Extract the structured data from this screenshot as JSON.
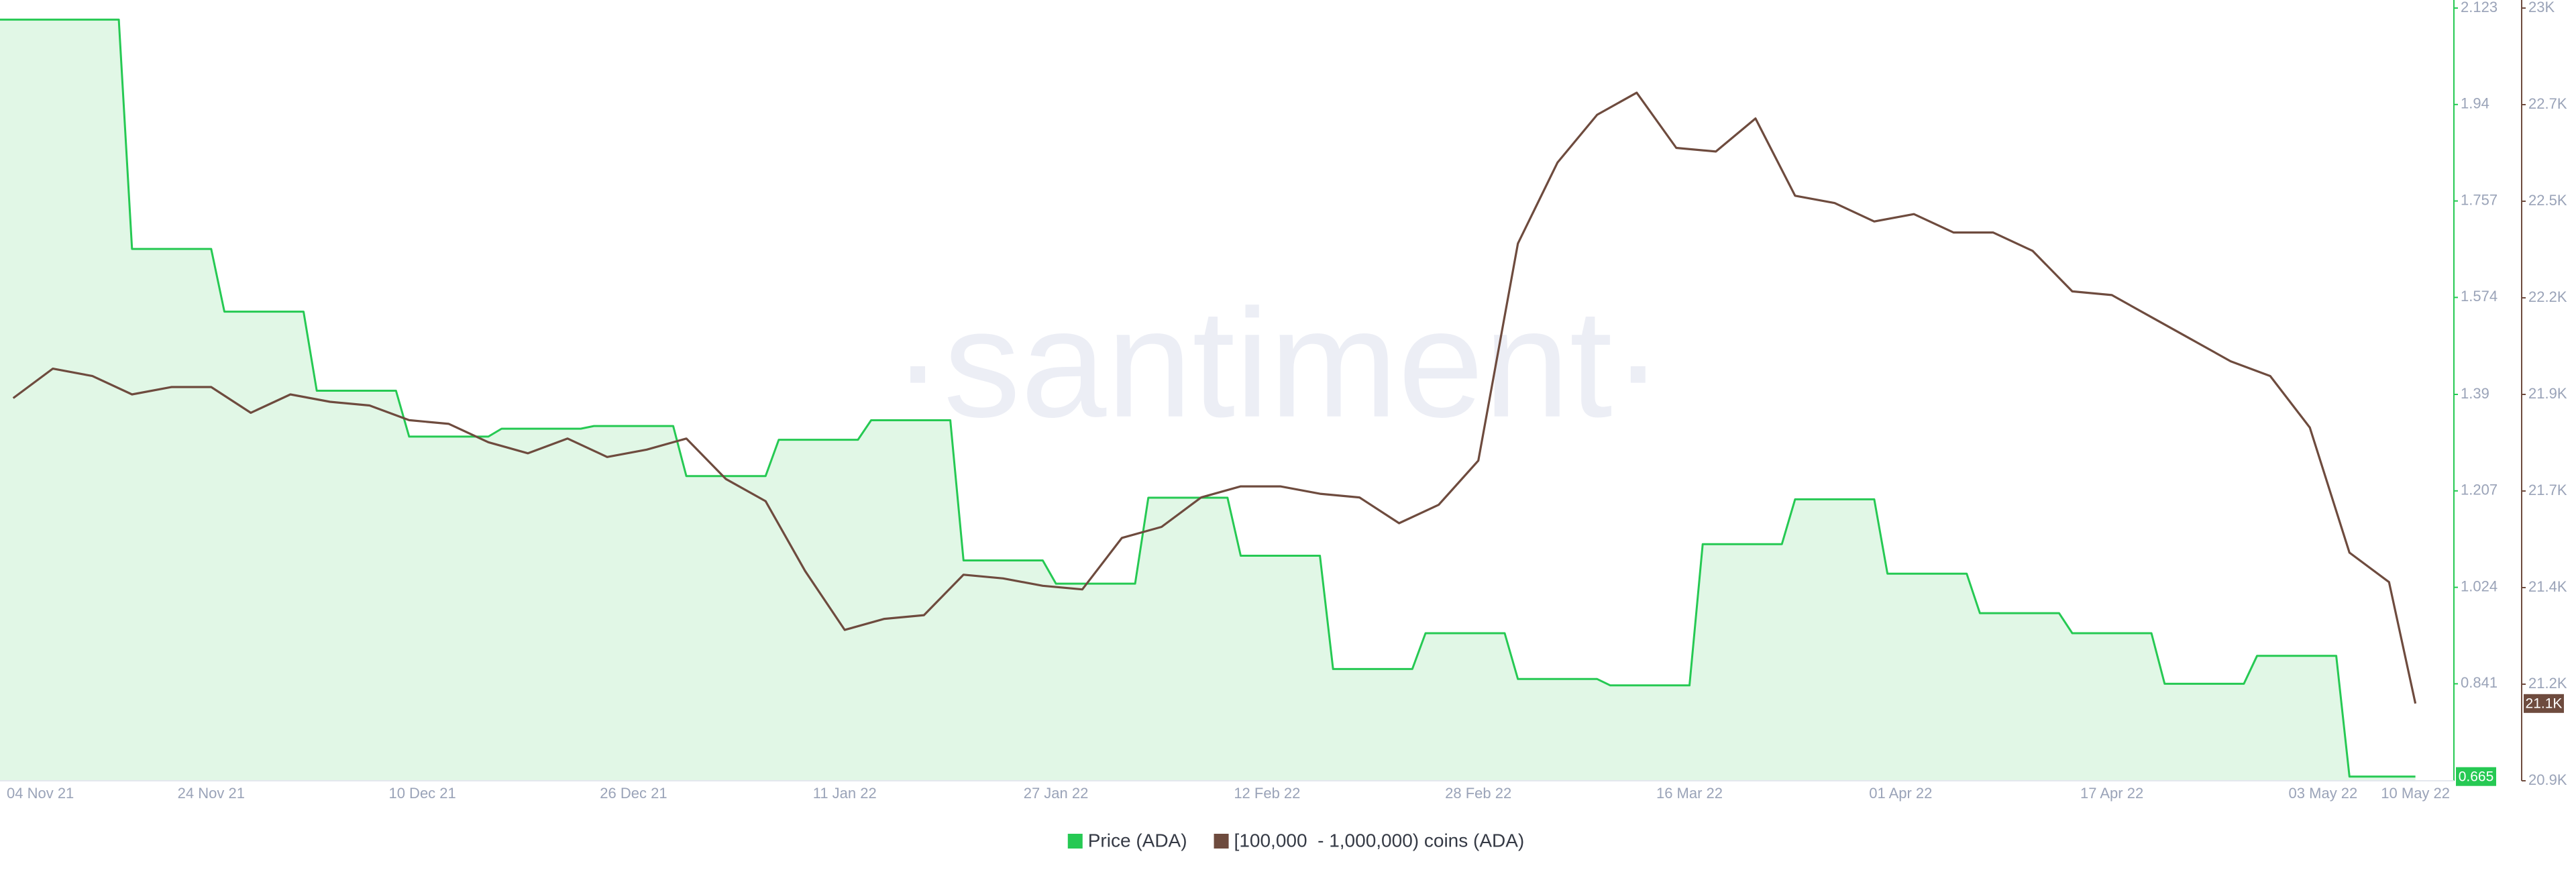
{
  "chart_data": {
    "type": "line",
    "watermark": "·santiment·",
    "xlim": [
      "2021-11-08",
      "2022-05-12"
    ],
    "xticks": [
      {
        "value": "2021-11-04",
        "label": "04 Nov 21"
      },
      {
        "value": "2021-11-24",
        "label": "24 Nov 21"
      },
      {
        "value": "2021-12-10",
        "label": "10 Dec 21"
      },
      {
        "value": "2021-12-26",
        "label": "26 Dec 21"
      },
      {
        "value": "2022-01-11",
        "label": "11 Jan 22"
      },
      {
        "value": "2022-01-27",
        "label": "27 Jan 22"
      },
      {
        "value": "2022-02-12",
        "label": "12 Feb 22"
      },
      {
        "value": "2022-02-28",
        "label": "28 Feb 22"
      },
      {
        "value": "2022-03-16",
        "label": "16 Mar 22"
      },
      {
        "value": "2022-04-01",
        "label": "01 Apr 22"
      },
      {
        "value": "2022-04-17",
        "label": "17 Apr 22"
      },
      {
        "value": "2022-05-03",
        "label": "03 May 22"
      },
      {
        "value": "2022-05-10",
        "label": "10 May 22"
      }
    ],
    "ylim": [
      0.657,
      2.123
    ],
    "yticks": [
      2.123,
      1.94,
      1.757,
      1.574,
      1.39,
      1.207,
      1.024,
      0.841
    ],
    "y2lim": [
      20900,
      23000
    ],
    "y2ticks": [
      {
        "value": 23000,
        "label": "23K"
      },
      {
        "value": 22737.5,
        "label": "22.7K"
      },
      {
        "value": 22475,
        "label": "22.5K"
      },
      {
        "value": 22212.5,
        "label": "22.2K"
      },
      {
        "value": 21950,
        "label": "21.9K"
      },
      {
        "value": 21687.5,
        "label": "21.7K"
      },
      {
        "value": 21425,
        "label": "21.4K"
      },
      {
        "value": 21162.5,
        "label": "21.2K"
      },
      {
        "value": 20900,
        "label": "20.9K"
      }
    ],
    "legend": "bottom",
    "series": [
      {
        "name": "Price (ADA)",
        "color": "#26c953",
        "fill": "#e1f7e6",
        "area": true,
        "axis": "y",
        "x": [
          "2021-11-08",
          "2021-11-17",
          "2021-11-18",
          "2021-11-24",
          "2021-11-25",
          "2021-12-01",
          "2021-12-02",
          "2021-12-08",
          "2021-12-09",
          "2021-12-15",
          "2021-12-16",
          "2021-12-22",
          "2021-12-23",
          "2021-12-29",
          "2021-12-30",
          "2022-01-05",
          "2022-01-06",
          "2022-01-12",
          "2022-01-13",
          "2022-01-19",
          "2022-01-20",
          "2022-01-26",
          "2022-01-27",
          "2022-02-02",
          "2022-02-03",
          "2022-02-09",
          "2022-02-10",
          "2022-02-16",
          "2022-02-17",
          "2022-02-23",
          "2022-02-24",
          "2022-03-02",
          "2022-03-03",
          "2022-03-09",
          "2022-03-10",
          "2022-03-16",
          "2022-03-17",
          "2022-03-23",
          "2022-03-24",
          "2022-03-30",
          "2022-03-31",
          "2022-04-06",
          "2022-04-07",
          "2022-04-13",
          "2022-04-14",
          "2022-04-20",
          "2022-04-21",
          "2022-04-27",
          "2022-04-28",
          "2022-05-04",
          "2022-05-05",
          "2022-05-10"
        ],
        "values": [
          2.101,
          2.101,
          1.666,
          1.666,
          1.547,
          1.547,
          1.397,
          1.397,
          1.31,
          1.31,
          1.325,
          1.325,
          1.33,
          1.33,
          1.235,
          1.235,
          1.304,
          1.304,
          1.341,
          1.341,
          1.075,
          1.075,
          1.031,
          1.031,
          1.194,
          1.194,
          1.084,
          1.084,
          0.869,
          0.869,
          0.937,
          0.937,
          0.85,
          0.85,
          0.838,
          0.838,
          1.106,
          1.106,
          1.191,
          1.191,
          1.05,
          1.05,
          0.975,
          0.975,
          0.937,
          0.937,
          0.841,
          0.841,
          0.894,
          0.894,
          0.665,
          0.665
        ]
      },
      {
        "name": "[100,000  - 1,000,000) coins (ADA)",
        "color": "#6e4b3e",
        "axis": "y2",
        "x": [
          "2021-11-09",
          "2021-11-12",
          "2021-11-15",
          "2021-11-18",
          "2021-11-21",
          "2021-11-24",
          "2021-11-27",
          "2021-11-30",
          "2021-12-03",
          "2021-12-06",
          "2021-12-09",
          "2021-12-12",
          "2021-12-15",
          "2021-12-18",
          "2021-12-21",
          "2021-12-24",
          "2021-12-27",
          "2021-12-30",
          "2022-01-02",
          "2022-01-05",
          "2022-01-08",
          "2022-01-11",
          "2022-01-14",
          "2022-01-17",
          "2022-01-20",
          "2022-01-23",
          "2022-01-26",
          "2022-01-29",
          "2022-02-01",
          "2022-02-04",
          "2022-02-07",
          "2022-02-10",
          "2022-02-13",
          "2022-02-16",
          "2022-02-19",
          "2022-02-22",
          "2022-02-25",
          "2022-02-28",
          "2022-03-03",
          "2022-03-06",
          "2022-03-09",
          "2022-03-12",
          "2022-03-15",
          "2022-03-18",
          "2022-03-21",
          "2022-03-24",
          "2022-03-27",
          "2022-03-30",
          "2022-04-02",
          "2022-04-05",
          "2022-04-08",
          "2022-04-11",
          "2022-04-14",
          "2022-04-17",
          "2022-04-20",
          "2022-04-23",
          "2022-04-26",
          "2022-04-29",
          "2022-05-02",
          "2022-05-05",
          "2022-05-08",
          "2022-05-10"
        ],
        "values": [
          21940,
          22020,
          22000,
          21950,
          21970,
          21970,
          21900,
          21950,
          21930,
          21920,
          21880,
          21870,
          21820,
          21790,
          21830,
          21780,
          21800,
          21830,
          21720,
          21660,
          21470,
          21310,
          21340,
          21350,
          21460,
          21450,
          21430,
          21420,
          21560,
          21590,
          21670,
          21700,
          21700,
          21680,
          21670,
          21600,
          21650,
          21770,
          22360,
          22580,
          22710,
          22770,
          22620,
          22610,
          22700,
          22490,
          22470,
          22420,
          22440,
          22390,
          22390,
          22340,
          22230,
          22220,
          22160,
          22100,
          22040,
          22000,
          21860,
          21520,
          21440,
          21110
        ],
        "value_labels": [
          null,
          null,
          null,
          null,
          null,
          null,
          null,
          null,
          null,
          null,
          null,
          null,
          null,
          null,
          null,
          null,
          null,
          null,
          null,
          null,
          null,
          null,
          null,
          null,
          null,
          null,
          null,
          null,
          null,
          null,
          null,
          null,
          null,
          null,
          null,
          null,
          null,
          null,
          null,
          null,
          null,
          null,
          null,
          null,
          null,
          null,
          null,
          null,
          null,
          null,
          null,
          null,
          null,
          null,
          null,
          null,
          null,
          null,
          null,
          null,
          null,
          "21.1K"
        ]
      }
    ]
  }
}
